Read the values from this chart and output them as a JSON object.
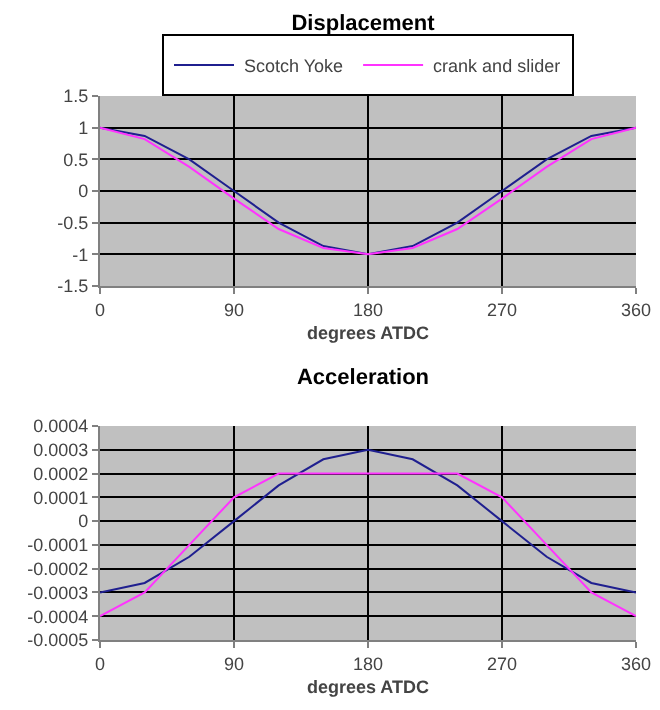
{
  "chart_data": [
    {
      "type": "line",
      "title": "Displacement",
      "xlabel": "degrees ATDC",
      "x": [
        0,
        30,
        60,
        90,
        120,
        150,
        180,
        210,
        240,
        270,
        300,
        330,
        360
      ],
      "series": [
        {
          "name": "Scotch Yoke",
          "color": "#1f1f8f",
          "values": [
            1,
            0.87,
            0.5,
            0,
            -0.5,
            -0.87,
            -1,
            -0.87,
            -0.5,
            0,
            0.5,
            0.87,
            1
          ]
        },
        {
          "name": "crank and slider",
          "color": "#ff33ff",
          "values": [
            1,
            0.82,
            0.38,
            -0.12,
            -0.6,
            -0.9,
            -1,
            -0.9,
            -0.6,
            -0.12,
            0.38,
            0.82,
            1
          ]
        }
      ],
      "xlim": [
        0,
        360
      ],
      "xticks": [
        0,
        90,
        180,
        270,
        360
      ],
      "ylim": [
        -1.5,
        1.5
      ],
      "yticks": [
        -1.5,
        -1,
        -0.5,
        0,
        0.5,
        1,
        1.5
      ],
      "grid": true,
      "legend": "top",
      "marker": "none"
    },
    {
      "type": "line",
      "title": "Acceleration",
      "xlabel": "degrees ATDC",
      "x": [
        0,
        30,
        60,
        90,
        120,
        150,
        180,
        210,
        240,
        270,
        300,
        330,
        360
      ],
      "series": [
        {
          "color": "#1f1f8f",
          "values": [
            -0.0003,
            -0.00026,
            -0.00015,
            0,
            0.00015,
            0.00026,
            0.0003,
            0.00026,
            0.00015,
            0,
            -0.00015,
            -0.00026,
            -0.0003
          ]
        },
        {
          "color": "#ff33ff",
          "values": [
            -0.0004,
            -0.0003,
            -0.0001,
            0.0001,
            0.0002,
            0.0002,
            0.0002,
            0.0002,
            0.0002,
            0.0001,
            -0.0001,
            -0.0003,
            -0.0004
          ]
        }
      ],
      "xlim": [
        0,
        360
      ],
      "xticks": [
        0,
        90,
        180,
        270,
        360
      ],
      "ylim": [
        -0.0005,
        0.0004
      ],
      "yticks": [
        -0.0005,
        -0.0004,
        -0.0003,
        -0.0002,
        -0.0001,
        0,
        0.0001,
        0.0002,
        0.0003,
        0.0004
      ],
      "grid": true,
      "legend": false,
      "marker": "none"
    }
  ]
}
